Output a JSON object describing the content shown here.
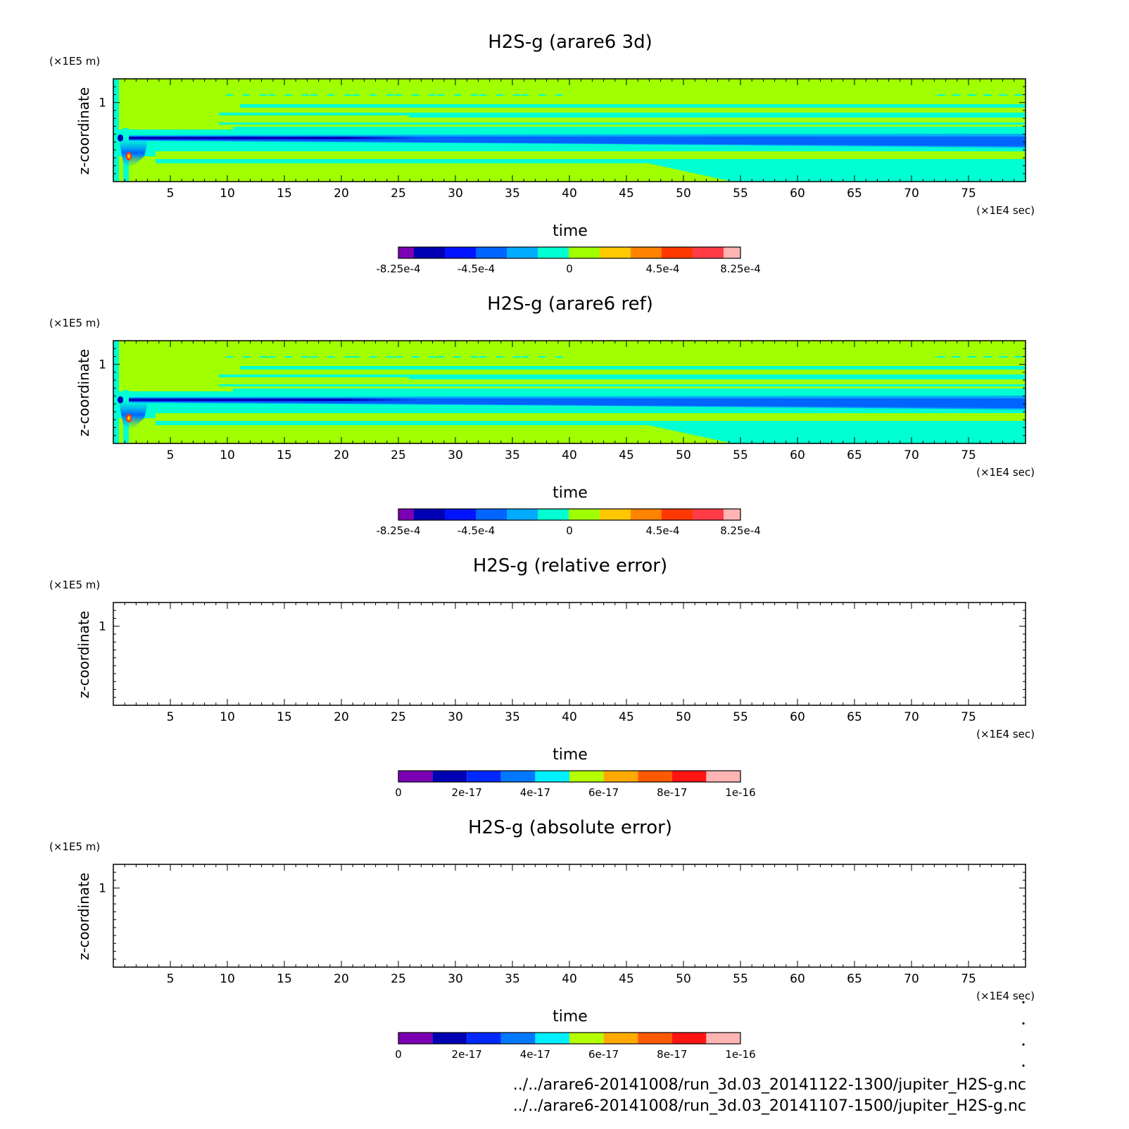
{
  "colors": {
    "contour_3": [
      "#7b00b4",
      "#0000b4",
      "#0014ff",
      "#0064ff",
      "#00aaff",
      "#00ffd2",
      "#a0ff00",
      "#ffc800",
      "#ff8200",
      "#ff3700",
      "#ff3c46",
      "#ffb4b4"
    ],
    "contour_10": [
      "#7b00b4",
      "#0000b4",
      "#0028ff",
      "#0078ff",
      "#00f0ff",
      "#b4ff00",
      "#ffaa00",
      "#ff5a00",
      "#ff1414",
      "#ffb4b4"
    ]
  },
  "files": [
    "../../arare6-20141008/run_3d.03_20141122-1300/jupiter_H2S-g.nc",
    "../../arare6-20141008/run_3d.03_20141107-1500/jupiter_H2S-g.nc"
  ],
  "chart_data": [
    {
      "type": "heatmap",
      "title": "H2S-g (arare6 3d)",
      "xlabel": "time",
      "x_unit": "(×1E4 sec)",
      "ylabel": "z-coordinate",
      "y_unit": "(×1E5 m)",
      "xlim": [
        0,
        80
      ],
      "ylim": [
        0,
        1.3
      ],
      "x_ticks": [
        "5",
        "10",
        "15",
        "20",
        "25",
        "30",
        "35",
        "40",
        "45",
        "50",
        "55",
        "60",
        "65",
        "70",
        "75"
      ],
      "y_ticks": [
        "1"
      ],
      "colorbar_labels": [
        "-8.25e-4",
        "-4.5e-4",
        "0",
        "4.5e-4",
        "8.25e-4"
      ],
      "colorbar_range": [
        -0.000825,
        0.000825
      ]
    },
    {
      "type": "heatmap",
      "title": "H2S-g (arare6 ref)",
      "xlabel": "time",
      "x_unit": "(×1E4 sec)",
      "ylabel": "z-coordinate",
      "y_unit": "(×1E5 m)",
      "xlim": [
        0,
        80
      ],
      "ylim": [
        0,
        1.3
      ],
      "x_ticks": [
        "5",
        "10",
        "15",
        "20",
        "25",
        "30",
        "35",
        "40",
        "45",
        "50",
        "55",
        "60",
        "65",
        "70",
        "75"
      ],
      "y_ticks": [
        "1"
      ],
      "colorbar_labels": [
        "-8.25e-4",
        "-4.5e-4",
        "0",
        "4.5e-4",
        "8.25e-4"
      ],
      "colorbar_range": [
        -0.000825,
        0.000825
      ]
    },
    {
      "type": "heatmap",
      "title": "H2S-g (relative error)",
      "xlabel": "time",
      "x_unit": "(×1E4 sec)",
      "ylabel": "z-coordinate",
      "y_unit": "(×1E5 m)",
      "xlim": [
        0,
        80
      ],
      "ylim": [
        0,
        1.3
      ],
      "x_ticks": [
        "5",
        "10",
        "15",
        "20",
        "25",
        "30",
        "35",
        "40",
        "45",
        "50",
        "55",
        "60",
        "65",
        "70",
        "75"
      ],
      "y_ticks": [
        "1"
      ],
      "colorbar_labels": [
        "0",
        "2e-17",
        "4e-17",
        "6e-17",
        "8e-17",
        "1e-16"
      ],
      "colorbar_range": [
        0,
        1e-16
      ]
    },
    {
      "type": "heatmap",
      "title": "H2S-g (absolute error)",
      "xlabel": "time",
      "x_unit": "(×1E4 sec)",
      "ylabel": "z-coordinate",
      "y_unit": "(×1E5 m)",
      "xlim": [
        0,
        80
      ],
      "ylim": [
        0,
        1.3
      ],
      "x_ticks": [
        "5",
        "10",
        "15",
        "20",
        "25",
        "30",
        "35",
        "40",
        "45",
        "50",
        "55",
        "60",
        "65",
        "70",
        "75"
      ],
      "y_ticks": [
        "1"
      ],
      "colorbar_labels": [
        "0",
        "2e-17",
        "4e-17",
        "6e-17",
        "8e-17",
        "1e-16"
      ],
      "colorbar_range": [
        0,
        1e-16
      ]
    }
  ]
}
